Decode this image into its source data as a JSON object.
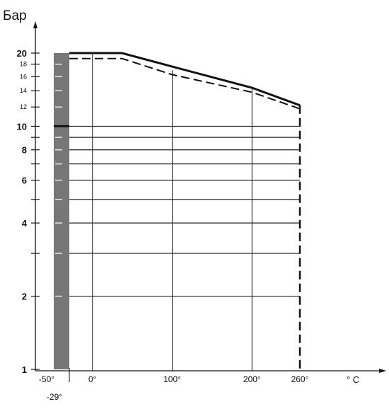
{
  "chart_data": {
    "type": "line",
    "title": "",
    "ylabel": "Бар",
    "xlabel": "° C",
    "y_scale": "log",
    "ylim": [
      1,
      20
    ],
    "xlim": [
      -50,
      260
    ],
    "grid": true,
    "y_tick_labels": [
      {
        "value": 20,
        "label": "20"
      },
      {
        "value": 18,
        "label": "18"
      },
      {
        "value": 16,
        "label": "16"
      },
      {
        "value": 14,
        "label": "14"
      },
      {
        "value": 12,
        "label": "12"
      },
      {
        "value": 10,
        "label": "10"
      },
      {
        "value": 8,
        "label": "8"
      },
      {
        "value": 6,
        "label": "6"
      },
      {
        "value": 4,
        "label": "4"
      },
      {
        "value": 2,
        "label": "2"
      },
      {
        "value": 1,
        "label": "1"
      }
    ],
    "y_minor_ticks": [
      9,
      7,
      5,
      3
    ],
    "x_tick_labels": [
      {
        "value": -50,
        "label": "-50°"
      },
      {
        "value": 0,
        "label": "0°"
      },
      {
        "value": 100,
        "label": "100°"
      },
      {
        "value": 200,
        "label": "200°"
      },
      {
        "value": 260,
        "label": "260°"
      }
    ],
    "x_extra_labels": [
      {
        "value": -29,
        "label": "-29°"
      }
    ],
    "horizontal_gridlines": [
      10,
      9,
      8,
      7,
      6,
      5,
      4,
      3,
      2
    ],
    "vertical_gridlines": [
      0,
      100,
      200
    ],
    "series": [
      {
        "style": "solid",
        "x": [
          -29,
          37,
          100,
          200,
          260
        ],
        "y": [
          20,
          20,
          17.6,
          14.4,
          12.2
        ]
      },
      {
        "style": "dashed",
        "x": [
          -29,
          37,
          100,
          200,
          260
        ],
        "y": [
          19,
          19,
          16.3,
          13.8,
          11.8
        ]
      }
    ],
    "shaded_band": {
      "from": -50,
      "to": -29
    },
    "colors": {
      "lines": "#111111",
      "grid": "#222222",
      "band": "#777777"
    }
  }
}
